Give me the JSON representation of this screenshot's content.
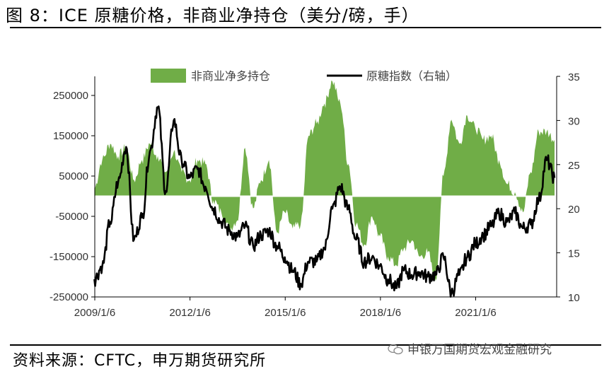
{
  "title": "图 8：ICE 原糖价格，非商业净持仓（美分/磅，手）",
  "source": "资料来源：CFTC，申万期货研究所",
  "watermark": "申银万国期货宏观金融研究",
  "colors": {
    "area": "#70AD47",
    "line": "#000000",
    "axis": "#000000"
  },
  "chart_data": {
    "type": "area",
    "legend": {
      "position": "top",
      "items": [
        "非商业净多持仓",
        "原糖指数（右轴）"
      ]
    },
    "x_tick_labels": [
      "2009/1/6",
      "2012/1/6",
      "2015/1/6",
      "2018/1/6",
      "2021/1/6"
    ],
    "x_range": [
      "2009-01-06",
      "2023-07-25"
    ],
    "y_left": {
      "ticks": [
        250000,
        150000,
        50000,
        -50000,
        -150000,
        -250000
      ],
      "labels": [
        "250000",
        "150000",
        "50000",
        "-50000",
        "-150000",
        "-250000"
      ],
      "range": [
        -250000,
        250000
      ]
    },
    "y_right": {
      "ticks": [
        35,
        30,
        25,
        20,
        15,
        10
      ],
      "labels": [
        "35",
        "30",
        "25",
        "20",
        "15",
        "10"
      ],
      "range": [
        10,
        35
      ]
    },
    "grid": false,
    "series": [
      {
        "name": "非商业净多持仓",
        "type": "area",
        "axis": "left",
        "points": [
          [
            "2009-01",
            20000
          ],
          [
            "2009-04",
            90000
          ],
          [
            "2009-07",
            130000
          ],
          [
            "2009-10",
            100000
          ],
          [
            "2010-01",
            120000
          ],
          [
            "2010-04",
            40000
          ],
          [
            "2010-07",
            90000
          ],
          [
            "2010-10",
            130000
          ],
          [
            "2011-01",
            100000
          ],
          [
            "2011-04",
            60000
          ],
          [
            "2011-07",
            110000
          ],
          [
            "2011-10",
            60000
          ],
          [
            "2012-01",
            40000
          ],
          [
            "2012-04",
            90000
          ],
          [
            "2012-07",
            80000
          ],
          [
            "2012-10",
            -10000
          ],
          [
            "2013-01",
            -40000
          ],
          [
            "2013-04",
            -80000
          ],
          [
            "2013-07",
            -60000
          ],
          [
            "2013-10",
            120000
          ],
          [
            "2014-01",
            -30000
          ],
          [
            "2014-04",
            40000
          ],
          [
            "2014-07",
            90000
          ],
          [
            "2014-10",
            -90000
          ],
          [
            "2015-01",
            -40000
          ],
          [
            "2015-04",
            -80000
          ],
          [
            "2015-07",
            -70000
          ],
          [
            "2015-10",
            150000
          ],
          [
            "2016-01",
            180000
          ],
          [
            "2016-04",
            230000
          ],
          [
            "2016-07",
            285000
          ],
          [
            "2016-10",
            230000
          ],
          [
            "2017-01",
            80000
          ],
          [
            "2017-04",
            -70000
          ],
          [
            "2017-07",
            -120000
          ],
          [
            "2017-10",
            -50000
          ],
          [
            "2018-01",
            -100000
          ],
          [
            "2018-04",
            -150000
          ],
          [
            "2018-07",
            -170000
          ],
          [
            "2018-10",
            -130000
          ],
          [
            "2019-01",
            -110000
          ],
          [
            "2019-04",
            -150000
          ],
          [
            "2019-07",
            -140000
          ],
          [
            "2019-10",
            -210000
          ],
          [
            "2020-01",
            50000
          ],
          [
            "2020-04",
            190000
          ],
          [
            "2020-07",
            130000
          ],
          [
            "2020-10",
            200000
          ],
          [
            "2021-01",
            170000
          ],
          [
            "2021-04",
            140000
          ],
          [
            "2021-07",
            150000
          ],
          [
            "2021-10",
            90000
          ],
          [
            "2022-01",
            30000
          ],
          [
            "2022-04",
            10000
          ],
          [
            "2022-07",
            -40000
          ],
          [
            "2022-10",
            60000
          ],
          [
            "2023-01",
            160000
          ],
          [
            "2023-04",
            160000
          ],
          [
            "2023-07",
            140000
          ]
        ]
      },
      {
        "name": "原糖指数（右轴）",
        "type": "line",
        "axis": "right",
        "points": [
          [
            "2009-01",
            12.0
          ],
          [
            "2009-04",
            13.5
          ],
          [
            "2009-07",
            18.5
          ],
          [
            "2009-10",
            23.0
          ],
          [
            "2010-01",
            27.0
          ],
          [
            "2010-04",
            16.5
          ],
          [
            "2010-07",
            19.0
          ],
          [
            "2010-10",
            26.5
          ],
          [
            "2011-01",
            31.5
          ],
          [
            "2011-04",
            22.0
          ],
          [
            "2011-07",
            30.0
          ],
          [
            "2011-10",
            25.5
          ],
          [
            "2012-01",
            23.5
          ],
          [
            "2012-04",
            24.5
          ],
          [
            "2012-07",
            22.5
          ],
          [
            "2012-10",
            20.0
          ],
          [
            "2013-01",
            18.5
          ],
          [
            "2013-04",
            17.5
          ],
          [
            "2013-07",
            16.8
          ],
          [
            "2013-10",
            18.0
          ],
          [
            "2014-01",
            15.8
          ],
          [
            "2014-04",
            17.0
          ],
          [
            "2014-07",
            17.5
          ],
          [
            "2014-10",
            15.8
          ],
          [
            "2015-01",
            14.5
          ],
          [
            "2015-04",
            13.0
          ],
          [
            "2015-07",
            11.5
          ],
          [
            "2015-10",
            14.0
          ],
          [
            "2016-01",
            14.0
          ],
          [
            "2016-04",
            15.5
          ],
          [
            "2016-07",
            20.0
          ],
          [
            "2016-10",
            22.5
          ],
          [
            "2017-01",
            20.0
          ],
          [
            "2017-04",
            16.5
          ],
          [
            "2017-07",
            14.0
          ],
          [
            "2017-10",
            14.5
          ],
          [
            "2018-01",
            13.5
          ],
          [
            "2018-04",
            12.0
          ],
          [
            "2018-07",
            11.0
          ],
          [
            "2018-10",
            13.0
          ],
          [
            "2019-01",
            12.5
          ],
          [
            "2019-04",
            12.8
          ],
          [
            "2019-07",
            12.3
          ],
          [
            "2019-10",
            12.5
          ],
          [
            "2020-01",
            14.5
          ],
          [
            "2020-04",
            10.5
          ],
          [
            "2020-07",
            12.5
          ],
          [
            "2020-10",
            14.5
          ],
          [
            "2021-01",
            16.0
          ],
          [
            "2021-04",
            17.0
          ],
          [
            "2021-07",
            18.0
          ],
          [
            "2021-10",
            19.5
          ],
          [
            "2022-01",
            18.5
          ],
          [
            "2022-04",
            19.5
          ],
          [
            "2022-07",
            17.8
          ],
          [
            "2022-10",
            18.2
          ],
          [
            "2023-01",
            21.0
          ],
          [
            "2023-04",
            25.5
          ],
          [
            "2023-07",
            23.5
          ]
        ]
      }
    ]
  }
}
